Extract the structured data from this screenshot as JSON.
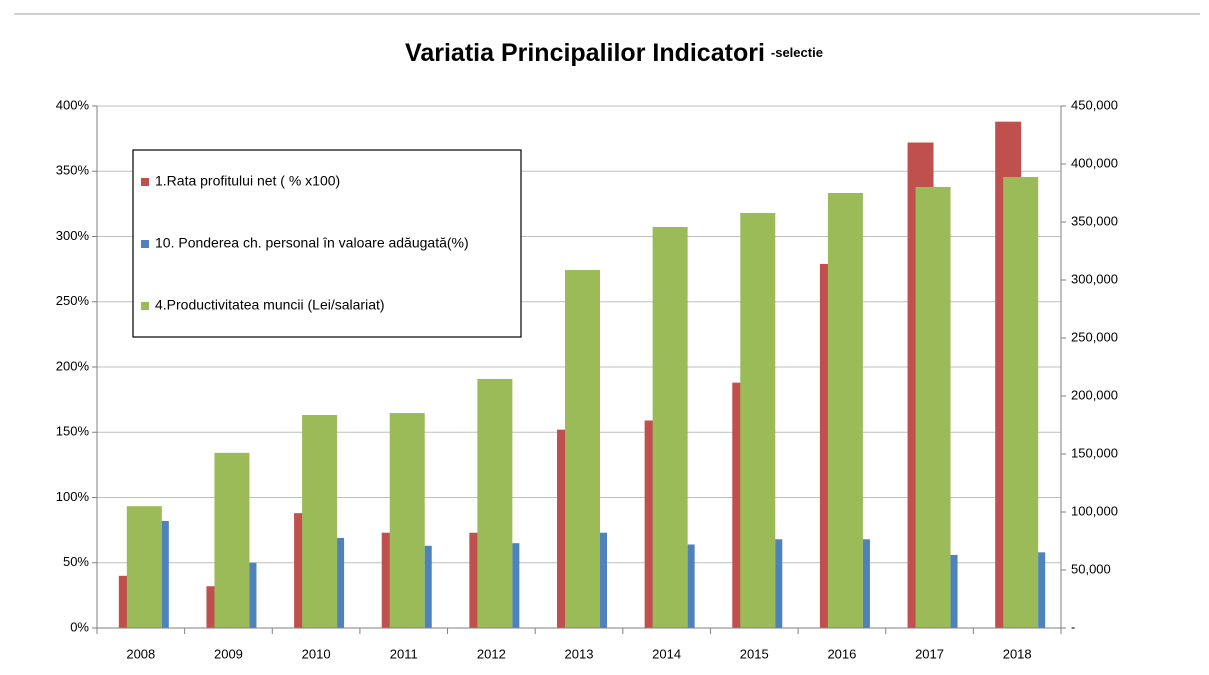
{
  "chart_data": {
    "type": "bar",
    "title": "Variatia Principalilor Indicatori",
    "subtitle": "-selectie",
    "categories": [
      "2008",
      "2009",
      "2010",
      "2011",
      "2012",
      "2013",
      "2014",
      "2015",
      "2016",
      "2017",
      "2018"
    ],
    "series": [
      {
        "name": "1.Rata profitului net ( % x100)",
        "color": "#c0504d",
        "values": [
          40,
          32,
          88,
          73,
          73,
          152,
          159,
          188,
          279,
          372,
          388
        ]
      },
      {
        "name": "4.Productivitatea muncii (Lei/salariat)",
        "color": "#9bbb59",
        "axis": "y2",
        "values": [
          105000,
          151000,
          183600,
          185300,
          214700,
          308600,
          345700,
          357800,
          375000,
          380200,
          388800
        ]
      },
      {
        "name": "10. Ponderea ch. personal în valoare adăugată(%)",
        "color": "#4f81bd",
        "values": [
          82,
          50,
          69,
          63,
          65,
          73,
          64,
          68,
          68,
          56,
          58
        ]
      }
    ],
    "legend_order": [
      0,
      2,
      1
    ],
    "ylim": [
      0,
      400
    ],
    "yticks": [
      {
        "value": 0,
        "label": "0%"
      },
      {
        "value": 50,
        "label": "50%"
      },
      {
        "value": 100,
        "label": "100%"
      },
      {
        "value": 150,
        "label": "150%"
      },
      {
        "value": 200,
        "label": "200%"
      },
      {
        "value": 250,
        "label": "250%"
      },
      {
        "value": 300,
        "label": "300%"
      },
      {
        "value": 350,
        "label": "350%"
      },
      {
        "value": 400,
        "label": "400%"
      }
    ],
    "y2lim": [
      0,
      450000
    ],
    "y2ticks": [
      {
        "value": 0,
        "label": "-"
      },
      {
        "value": 50000,
        "label": "50,000"
      },
      {
        "value": 100000,
        "label": "100,000"
      },
      {
        "value": 150000,
        "label": "150,000"
      },
      {
        "value": 200000,
        "label": "200,000"
      },
      {
        "value": 250000,
        "label": "250,000"
      },
      {
        "value": 300000,
        "label": "300,000"
      },
      {
        "value": 350000,
        "label": "350,000"
      },
      {
        "value": 400000,
        "label": "400,000"
      },
      {
        "value": 450000,
        "label": "450,000"
      }
    ],
    "grid": true,
    "legend": "upper left"
  }
}
